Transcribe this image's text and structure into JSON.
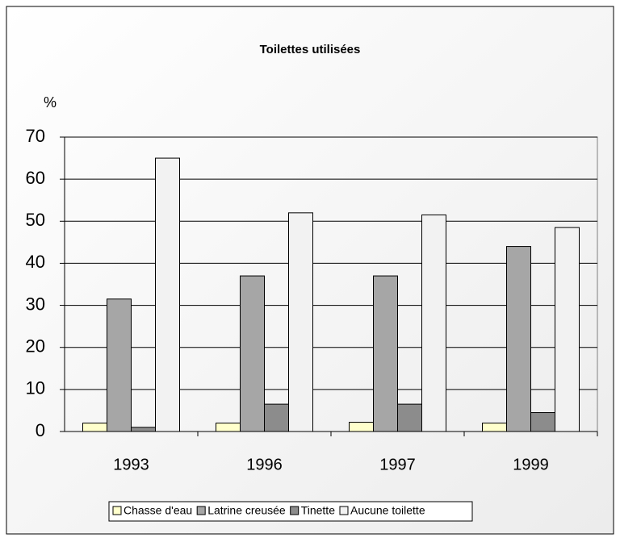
{
  "chart_data": {
    "type": "bar",
    "title": "Toilettes utilisées",
    "ylabel": "%",
    "categories": [
      "1993",
      "1996",
      "1997",
      "1999"
    ],
    "series": [
      {
        "name": "Chasse d'eau",
        "color": "#ffffcc",
        "values": [
          2,
          2,
          2.2,
          2
        ]
      },
      {
        "name": "Latrine creusée",
        "color": "#a6a6a6",
        "values": [
          31.5,
          37,
          37,
          44
        ]
      },
      {
        "name": "Tinette",
        "color": "#8c8c8c",
        "values": [
          1,
          6.5,
          6.5,
          4.5
        ]
      },
      {
        "name": "Aucune toilette",
        "color": "#f2f2f2",
        "values": [
          65,
          52,
          51.5,
          48.5
        ]
      }
    ],
    "ylim": [
      0,
      70
    ],
    "yticks": [
      0,
      10,
      20,
      30,
      40,
      50,
      60,
      70
    ],
    "grid": true,
    "legend": "bottom"
  }
}
